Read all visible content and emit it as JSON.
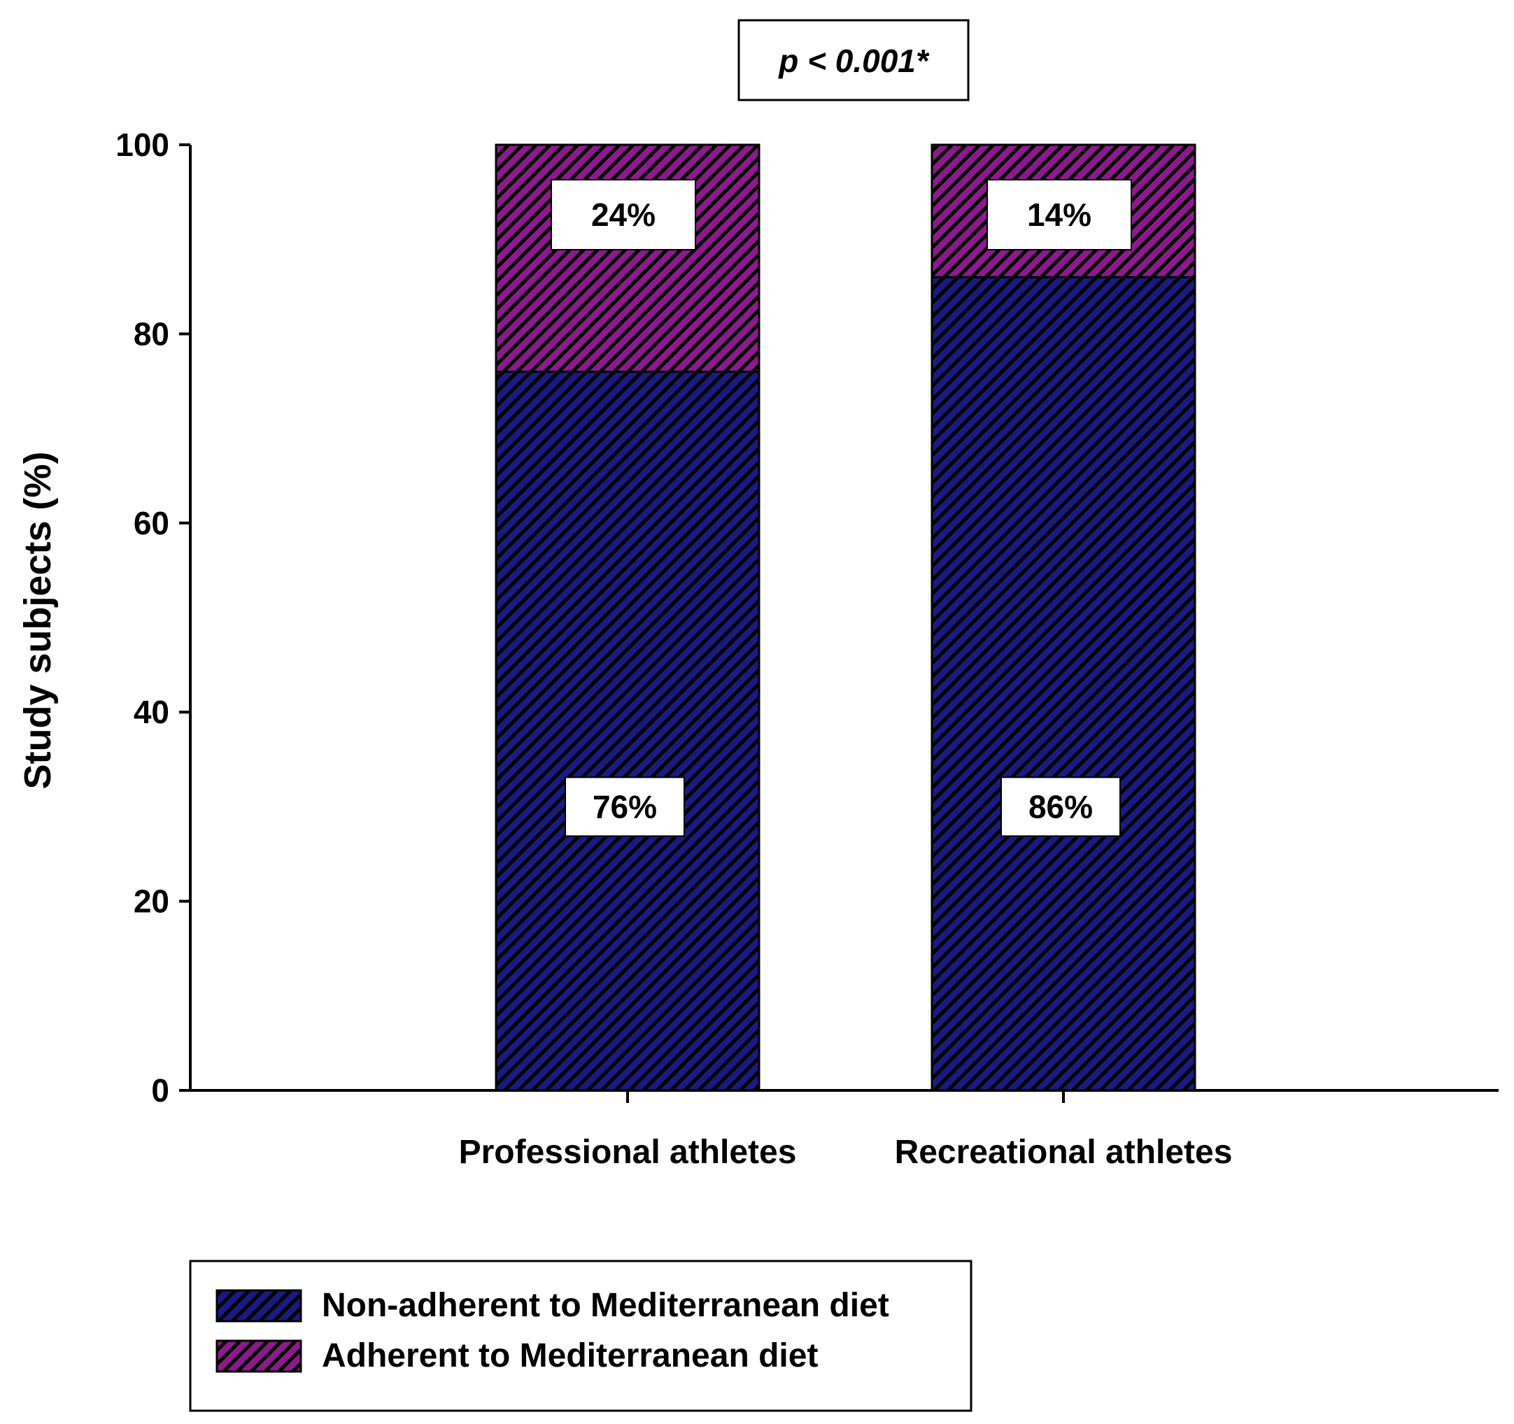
{
  "chart_data": {
    "type": "bar",
    "stacked": true,
    "annotation": "p < 0.001*",
    "ylabel": "Study subjects (%)",
    "xlabel": "",
    "ylim": [
      0,
      100
    ],
    "yticks": [
      0,
      20,
      40,
      60,
      80,
      100
    ],
    "grid": false,
    "legend_position": "bottom-left",
    "categories": [
      "Professional athletes",
      "Recreational athletes"
    ],
    "series": [
      {
        "name": "Non-adherent to Mediterranean diet",
        "values": [
          76,
          86
        ],
        "labels": [
          "76%",
          "86%"
        ],
        "color": "#1a1a80"
      },
      {
        "name": "Adherent to Mediterranean diet",
        "values": [
          24,
          14
        ],
        "labels": [
          "24%",
          "14%"
        ],
        "color": "#8b1a8b"
      }
    ]
  }
}
